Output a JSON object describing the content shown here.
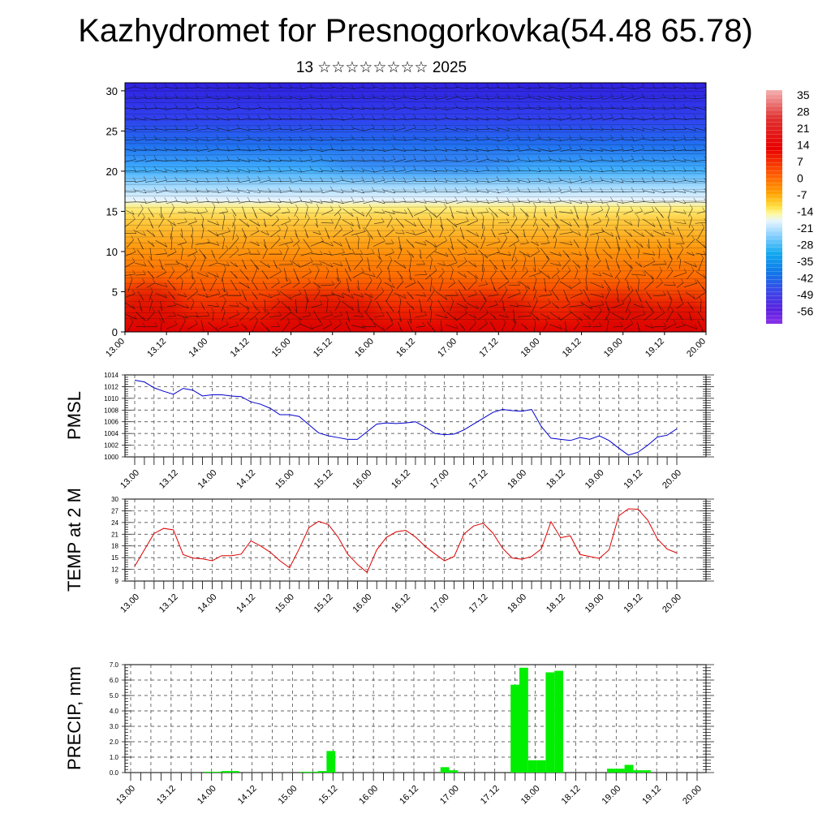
{
  "title": "Kazhydromet for Presnogorkovka(54.48 65.78)",
  "subtitle": "13 ☆☆☆☆☆☆☆☆ 2025",
  "time_labels": [
    "13.00",
    "13.12",
    "14.00",
    "14.12",
    "15.00",
    "15.12",
    "16.00",
    "16.12",
    "17.00",
    "17.12",
    "18.00",
    "18.12",
    "19.00",
    "19.12",
    "20.00"
  ],
  "colors": {
    "pmsl_line": "#0000cc",
    "temp_line": "#dd0000",
    "precip_bar": "#00ee00"
  },
  "chart_data": [
    {
      "type": "heatmap",
      "name": "upper-air cross section",
      "x": "time_labels",
      "y_ticks": [
        0,
        5,
        10,
        15,
        20,
        25,
        30
      ],
      "ylim": [
        0,
        31
      ],
      "colorbar_labels": [
        "35",
        "28",
        "21",
        "14",
        "7",
        "0",
        "-7",
        "-14",
        "-21",
        "-28",
        "-35",
        "-42",
        "-49",
        "-56"
      ],
      "colorbar_range": [
        -63,
        42
      ],
      "notes": "temperature shading with wind barbs"
    },
    {
      "type": "line",
      "ylabel": "PMSL",
      "ylim": [
        1000,
        1014
      ],
      "y_ticks": [
        1000,
        1002,
        1004,
        1006,
        1008,
        1010,
        1012,
        1014
      ],
      "values": [
        1013.1,
        1012.8,
        1011.8,
        1011.2,
        1010.7,
        1011.7,
        1011.4,
        1010.4,
        1010.6,
        1010.6,
        1010.4,
        1010.3,
        1009.4,
        1009.0,
        1008.3,
        1007.2,
        1007.2,
        1006.9,
        1005.5,
        1004.1,
        1003.6,
        1003.3,
        1003.0,
        1003.0,
        1004.3,
        1005.6,
        1005.8,
        1005.7,
        1005.8,
        1006.0,
        1005.1,
        1004.0,
        1003.8,
        1003.9,
        1004.6,
        1005.6,
        1006.6,
        1007.6,
        1008.1,
        1007.9,
        1007.8,
        1008.1,
        1005.2,
        1003.2,
        1003.0,
        1002.8,
        1003.3,
        1003.0,
        1003.6,
        1002.8,
        1001.5,
        1000.3,
        1000.8,
        1002.0,
        1003.4,
        1003.7,
        1004.8
      ]
    },
    {
      "type": "line",
      "ylabel": "TEMP at 2 M",
      "ylim": [
        9,
        30
      ],
      "y_ticks": [
        9,
        12,
        15,
        18,
        21,
        24,
        27,
        30
      ],
      "values": [
        12.8,
        17.0,
        21.2,
        22.5,
        22.1,
        15.8,
        14.9,
        14.7,
        14.2,
        15.5,
        15.5,
        15.9,
        19.3,
        18.0,
        16.4,
        14.2,
        12.4,
        17.3,
        22.7,
        24.3,
        23.5,
        20.3,
        15.9,
        13.3,
        11.2,
        17.0,
        20.2,
        21.6,
        22.0,
        20.3,
        17.9,
        16.0,
        14.2,
        15.3,
        21.0,
        23.1,
        23.8,
        21.3,
        17.4,
        14.9,
        14.6,
        15.3,
        17.2,
        24.2,
        20.1,
        20.6,
        15.8,
        15.3,
        14.8,
        17.0,
        25.7,
        27.5,
        27.4,
        24.6,
        19.8,
        17.2,
        16.2
      ]
    },
    {
      "type": "bar",
      "ylabel": "PRECIP, mm",
      "ylim": [
        0,
        7
      ],
      "y_ticks": [
        "0.0",
        "1.0",
        "2.0",
        "3.0",
        "4.0",
        "5.0",
        "6.0",
        "7.0"
      ],
      "values": [
        0,
        0,
        0,
        0,
        0,
        0,
        0,
        0,
        0,
        0.05,
        0.05,
        0.1,
        0.1,
        0,
        0,
        0,
        0,
        0,
        0,
        0,
        0.05,
        0.05,
        0.1,
        1.4,
        0,
        0,
        0,
        0,
        0,
        0,
        0,
        0,
        0,
        0,
        0,
        0,
        0.35,
        0.15,
        0,
        0,
        0,
        0,
        0,
        0,
        5.7,
        6.8,
        0.8,
        0.8,
        6.5,
        6.6,
        0,
        0,
        0,
        0,
        0,
        0.25,
        0.25,
        0.5,
        0.15,
        0.15,
        0,
        0,
        0,
        0,
        0,
        0,
        0
      ]
    }
  ]
}
